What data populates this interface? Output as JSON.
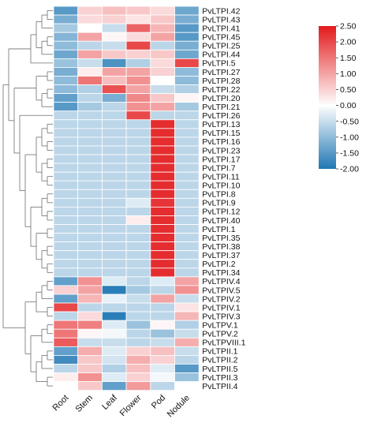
{
  "chart_data": {
    "type": "heatmap",
    "title": "",
    "xlabel": "",
    "ylabel": "",
    "columns": [
      "Root",
      "Stem",
      "Leaf",
      "Flower",
      "Pod",
      "Nodule"
    ],
    "rows": [
      "PvLTPI.42",
      "PvLTPI.43",
      "PvLTPI.41",
      "PvLTPI.45",
      "PvLTPI.25",
      "PvLTPI.44",
      "PvLTPI.5",
      "PvLTPI.27",
      "PvLTPI.28",
      "PvLTPI.22",
      "PvLTPI.20",
      "PvLTPI.21",
      "PvLTPI.26",
      "PvLTPI.13",
      "PvLTPI.15",
      "PvLTPI.16",
      "PvLTPI.23",
      "PvLTPI.17",
      "PvLTPI.7",
      "PvLTPI.11",
      "PvLTPI.10",
      "PvLTPI.8",
      "PvLTPI.9",
      "PvLTPI.12",
      "PvLTPI.40",
      "PvLTPI.1",
      "PvLTPI.35",
      "PvLTPI.38",
      "PvLTPI.37",
      "PvLTPI.2",
      "PvLTPI.34",
      "PvLTPIV.4",
      "PvLTPIV.5",
      "PvLTPIV.2",
      "PvLTPIV.1",
      "PvLTPIV.3",
      "PvLTPV.1",
      "PvLTPV.2",
      "PvLTPVIII.1",
      "PvLTPII.1",
      "PvLTPII.2",
      "PvLTPII.5",
      "PvLTPII.3",
      "PvLTPII.4"
    ],
    "values": [
      [
        -1.5,
        0.5,
        0.7,
        0.6,
        0.4,
        -1.3
      ],
      [
        -1.2,
        0.4,
        0.5,
        0.3,
        0.6,
        -1.2
      ],
      [
        -0.8,
        0.0,
        -0.5,
        1.7,
        0.8,
        -1.5
      ],
      [
        -1.1,
        1.0,
        0.1,
        0.4,
        1.0,
        -1.5
      ],
      [
        -1.0,
        -0.6,
        -0.5,
        2.0,
        -0.6,
        -1.2
      ],
      [
        -1.3,
        1.0,
        0.6,
        0.5,
        0.6,
        -1.3
      ],
      [
        -0.9,
        -0.5,
        -1.6,
        -0.7,
        0.4,
        2.0
      ],
      [
        -1.2,
        0.2,
        1.0,
        1.0,
        0.5,
        -1.0
      ],
      [
        -1.0,
        1.5,
        0.7,
        1.2,
        0.0,
        -1.0
      ],
      [
        -1.0,
        -0.7,
        1.9,
        1.0,
        -0.5,
        -0.7
      ],
      [
        -1.4,
        -0.6,
        -1.2,
        1.3,
        0.6,
        0.1
      ],
      [
        -1.5,
        -0.8,
        -0.6,
        1.2,
        1.0,
        -0.8
      ],
      [
        -0.6,
        -0.6,
        -0.6,
        2.0,
        -0.6,
        -0.6
      ],
      [
        -0.6,
        -0.6,
        -0.6,
        -0.6,
        2.3,
        -0.6
      ],
      [
        -0.6,
        -0.6,
        -0.6,
        -0.6,
        2.3,
        -0.6
      ],
      [
        -0.6,
        -0.6,
        -0.6,
        -0.6,
        2.3,
        -0.6
      ],
      [
        -0.6,
        -0.6,
        -0.6,
        -0.6,
        2.3,
        -0.6
      ],
      [
        -0.6,
        -0.6,
        -0.6,
        -0.6,
        2.3,
        -0.6
      ],
      [
        -0.6,
        -0.6,
        -0.6,
        -0.6,
        2.3,
        -0.6
      ],
      [
        -0.6,
        -0.6,
        -0.6,
        -0.6,
        2.3,
        -0.6
      ],
      [
        -0.6,
        -0.6,
        -0.6,
        -0.6,
        2.3,
        -0.6
      ],
      [
        -0.6,
        -0.6,
        -0.6,
        -0.6,
        2.3,
        -0.6
      ],
      [
        -0.6,
        -0.6,
        -0.6,
        -0.3,
        2.2,
        -0.6
      ],
      [
        -0.6,
        -0.6,
        -0.6,
        -0.6,
        2.3,
        -0.6
      ],
      [
        -0.6,
        -0.6,
        -0.6,
        0.2,
        2.3,
        -0.6
      ],
      [
        -0.6,
        -0.6,
        -0.6,
        -0.6,
        2.3,
        -0.6
      ],
      [
        -0.6,
        -0.6,
        -0.6,
        -0.6,
        2.3,
        -0.6
      ],
      [
        -0.6,
        -0.6,
        -0.6,
        -0.6,
        2.3,
        -0.6
      ],
      [
        -0.6,
        -0.6,
        -0.6,
        -0.6,
        2.3,
        -0.6
      ],
      [
        -0.6,
        -0.6,
        -0.6,
        -0.6,
        2.3,
        -0.6
      ],
      [
        -0.6,
        -0.6,
        -0.6,
        -0.6,
        2.3,
        -0.6
      ],
      [
        -1.4,
        1.2,
        -0.3,
        -0.6,
        -0.3,
        1.0
      ],
      [
        0.5,
        1.0,
        -1.9,
        -0.8,
        -0.6,
        1.2
      ],
      [
        -1.4,
        0.8,
        -0.2,
        -0.5,
        1.0,
        -0.5
      ],
      [
        2.0,
        -0.6,
        -0.6,
        -0.6,
        -0.6,
        0.3
      ],
      [
        -0.6,
        0.4,
        -1.9,
        -0.6,
        -0.6,
        0.8
      ],
      [
        1.5,
        1.4,
        -0.3,
        -0.9,
        0.1,
        -0.7
      ],
      [
        1.5,
        0.1,
        -0.1,
        -0.6,
        -0.9,
        -0.5
      ],
      [
        1.8,
        -0.5,
        -0.5,
        -0.6,
        -0.5,
        0.9
      ],
      [
        -1.4,
        0.9,
        -0.3,
        0.5,
        0.7,
        -0.5
      ],
      [
        -1.7,
        0.6,
        -0.4,
        0.9,
        0.5,
        -0.6
      ],
      [
        -0.6,
        0.6,
        -0.7,
        0.7,
        -0.3,
        -1.5
      ],
      [
        0.2,
        1.2,
        -0.3,
        0.5,
        -0.1,
        -0.9
      ],
      [
        0.0,
        0.6,
        -1.4,
        1.1,
        -0.6,
        0.0
      ]
    ],
    "colorbar": {
      "ticks": [
        "2.50",
        "2.00",
        "1.50",
        "1.00",
        "0.50",
        "0.00",
        "-0.50",
        "-1.00",
        "-1.50",
        "-2.00"
      ],
      "range": [
        -2.0,
        2.5
      ],
      "color_low": "#1f77b4",
      "color_mid": "#ffffff",
      "color_high": "#e31a1c"
    },
    "legend_position": "top-right",
    "dendrogram": "left",
    "grid": false
  }
}
